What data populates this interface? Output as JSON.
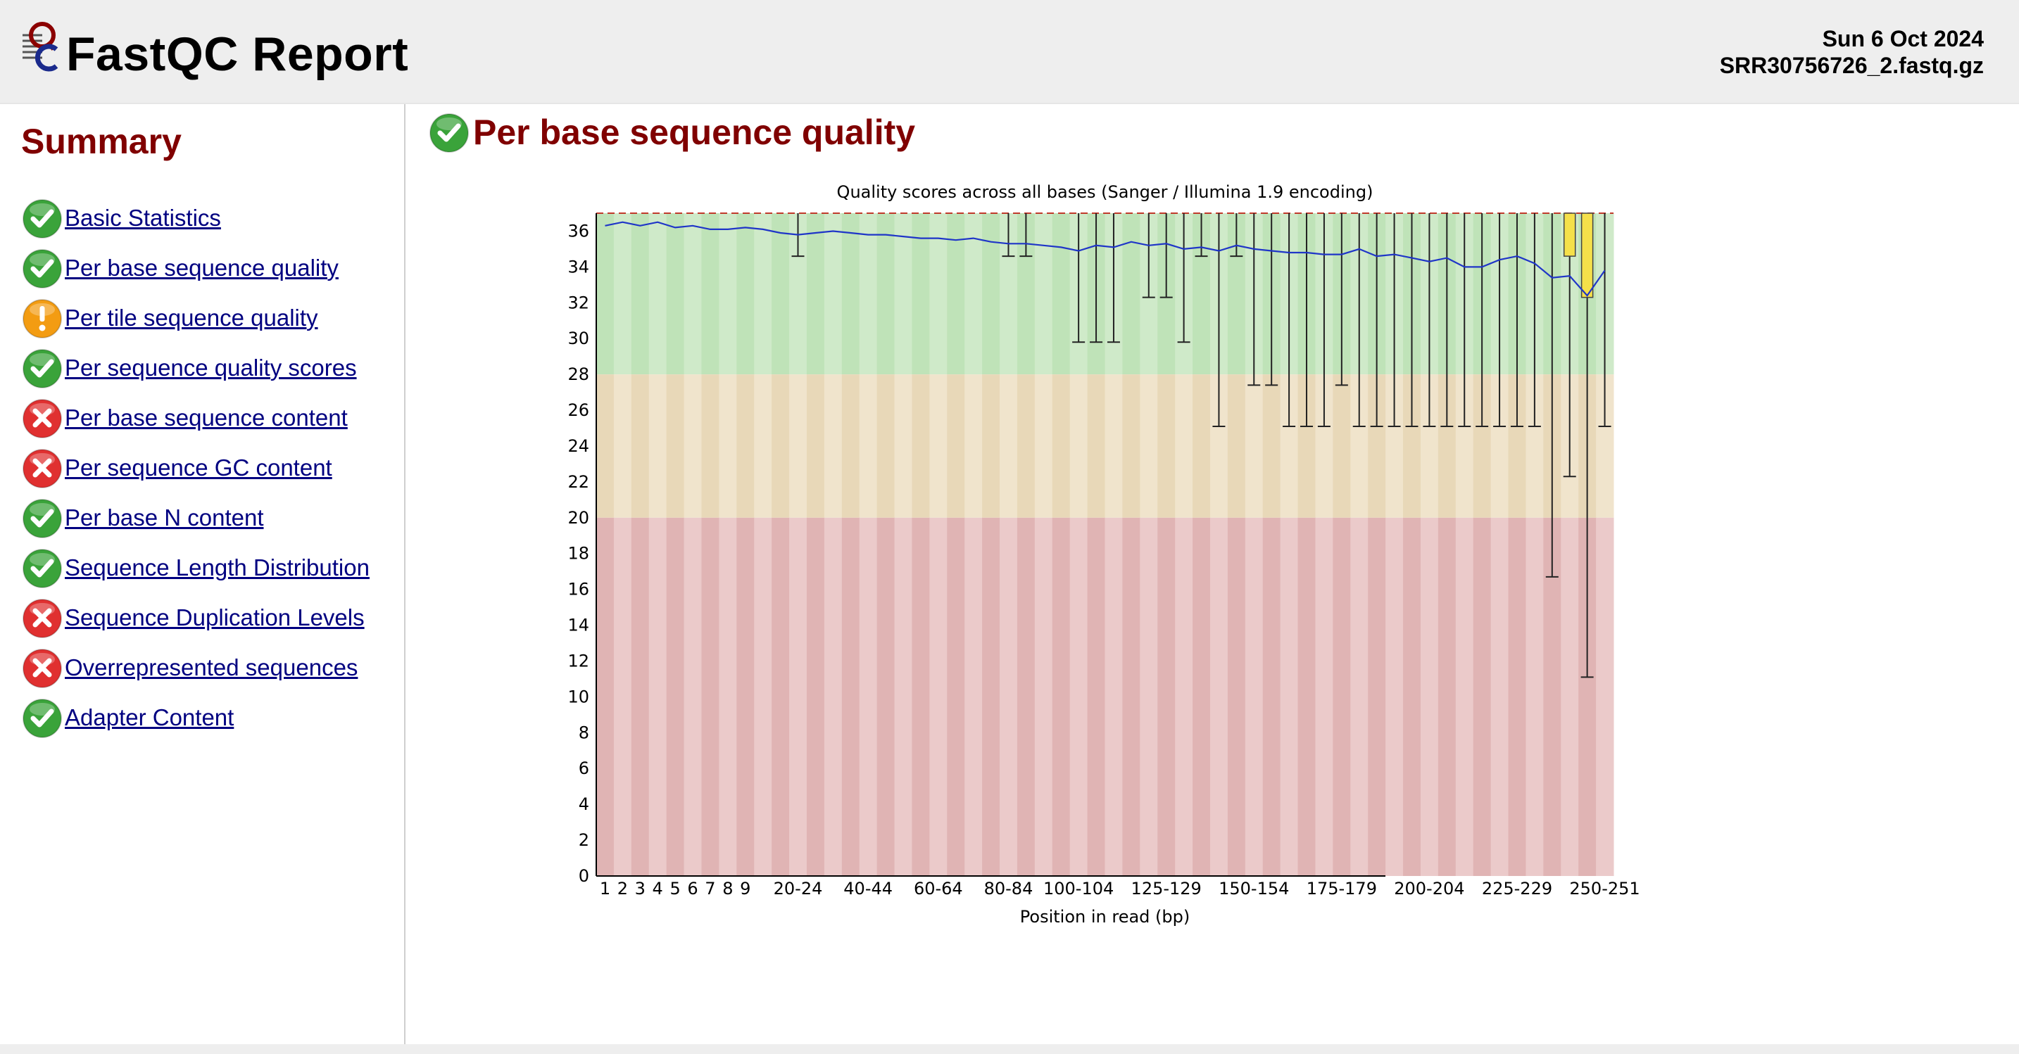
{
  "header": {
    "title": "FastQC Report",
    "date": "Sun 6 Oct 2024",
    "filename": "SRR30756726_2.fastq.gz"
  },
  "colors": {
    "pass": "#3aa33a",
    "warn": "#f39c12",
    "fail": "#e03030",
    "heading": "#800000",
    "link": "#000080"
  },
  "summary": {
    "title": "Summary",
    "modules": [
      {
        "label": "Basic Statistics",
        "status": "pass"
      },
      {
        "label": "Per base sequence quality",
        "status": "pass"
      },
      {
        "label": "Per tile sequence quality",
        "status": "warn"
      },
      {
        "label": "Per sequence quality scores",
        "status": "pass"
      },
      {
        "label": "Per base sequence content",
        "status": "fail"
      },
      {
        "label": "Per sequence GC content",
        "status": "fail"
      },
      {
        "label": "Per base N content",
        "status": "pass"
      },
      {
        "label": "Sequence Length Distribution",
        "status": "pass"
      },
      {
        "label": "Sequence Duplication Levels",
        "status": "fail"
      },
      {
        "label": "Overrepresented sequences",
        "status": "fail"
      },
      {
        "label": "Adapter Content",
        "status": "pass"
      }
    ]
  },
  "section": {
    "title": "Per base sequence quality",
    "status": "pass"
  },
  "chart_data": {
    "type": "box",
    "title": "Quality scores across all bases (Sanger / Illumina 1.9 encoding)",
    "xlabel": "Position in read (bp)",
    "ylabel": "",
    "ylim": [
      0,
      37
    ],
    "yticks": [
      0,
      2,
      4,
      6,
      8,
      10,
      12,
      14,
      16,
      18,
      20,
      22,
      24,
      26,
      28,
      30,
      32,
      34,
      36
    ],
    "x_tick_labels": [
      "1",
      "2",
      "3",
      "4",
      "5",
      "6",
      "7",
      "8",
      "9",
      "20-24",
      "40-44",
      "60-64",
      "80-84",
      "100-104",
      "125-129",
      "150-154",
      "175-179",
      "200-204",
      "225-229",
      "250-251"
    ],
    "background_bands": [
      {
        "from": 28,
        "to": 37,
        "color": "green"
      },
      {
        "from": 20,
        "to": 28,
        "color": "orange"
      },
      {
        "from": 0,
        "to": 20,
        "color": "red"
      }
    ],
    "grid": false,
    "mean_line_color": "#1f35c8",
    "box_color": "#f5e04a",
    "bins": [
      {
        "label": "1",
        "mean": 36.3,
        "low": 37,
        "high": 37
      },
      {
        "label": "2",
        "mean": 36.5,
        "low": 37,
        "high": 37
      },
      {
        "label": "3",
        "mean": 36.3,
        "low": 37,
        "high": 37
      },
      {
        "label": "4",
        "mean": 36.5,
        "low": 37,
        "high": 37
      },
      {
        "label": "5",
        "mean": 36.2,
        "low": 37,
        "high": 37
      },
      {
        "label": "6",
        "mean": 36.3,
        "low": 37,
        "high": 37
      },
      {
        "label": "7",
        "mean": 36.1,
        "low": 37,
        "high": 37
      },
      {
        "label": "8",
        "mean": 36.1,
        "low": 37,
        "high": 37
      },
      {
        "label": "9",
        "mean": 36.2,
        "low": 37,
        "high": 37
      },
      {
        "label": "10-14",
        "mean": 36.1,
        "low": 37,
        "high": 37
      },
      {
        "label": "15-19",
        "mean": 35.9,
        "low": 37,
        "high": 37
      },
      {
        "label": "20-24",
        "mean": 35.8,
        "low": 34.6,
        "high": 37
      },
      {
        "label": "25-29",
        "mean": 35.9,
        "low": 37,
        "high": 37
      },
      {
        "label": "30-34",
        "mean": 36.0,
        "low": 37,
        "high": 37
      },
      {
        "label": "35-39",
        "mean": 35.9,
        "low": 37,
        "high": 37
      },
      {
        "label": "40-44",
        "mean": 35.8,
        "low": 37,
        "high": 37
      },
      {
        "label": "45-49",
        "mean": 35.8,
        "low": 37,
        "high": 37
      },
      {
        "label": "50-54",
        "mean": 35.7,
        "low": 37,
        "high": 37
      },
      {
        "label": "55-59",
        "mean": 35.6,
        "low": 37,
        "high": 37
      },
      {
        "label": "60-64",
        "mean": 35.6,
        "low": 37,
        "high": 37
      },
      {
        "label": "65-69",
        "mean": 35.5,
        "low": 37,
        "high": 37
      },
      {
        "label": "70-74",
        "mean": 35.6,
        "low": 37,
        "high": 37
      },
      {
        "label": "75-79",
        "mean": 35.4,
        "low": 37,
        "high": 37
      },
      {
        "label": "80-84",
        "mean": 35.3,
        "low": 34.6,
        "high": 37
      },
      {
        "label": "85-89",
        "mean": 35.3,
        "low": 34.6,
        "high": 37
      },
      {
        "label": "90-94",
        "mean": 35.2,
        "low": 37,
        "high": 37
      },
      {
        "label": "95-99",
        "mean": 35.1,
        "low": 37,
        "high": 37
      },
      {
        "label": "100-104",
        "mean": 34.9,
        "low": 29.8,
        "high": 37
      },
      {
        "label": "105-109",
        "mean": 35.2,
        "low": 29.8,
        "high": 37
      },
      {
        "label": "110-114",
        "mean": 35.1,
        "low": 29.8,
        "high": 37
      },
      {
        "label": "115-119",
        "mean": 35.4,
        "low": 37,
        "high": 37
      },
      {
        "label": "120-124",
        "mean": 35.2,
        "low": 32.3,
        "high": 37
      },
      {
        "label": "125-129",
        "mean": 35.3,
        "low": 32.3,
        "high": 37
      },
      {
        "label": "130-134",
        "mean": 35.0,
        "low": 29.8,
        "high": 37
      },
      {
        "label": "135-139",
        "mean": 35.1,
        "low": 34.6,
        "high": 37
      },
      {
        "label": "140-144",
        "mean": 34.9,
        "low": 25.1,
        "high": 37
      },
      {
        "label": "145-149",
        "mean": 35.2,
        "low": 34.6,
        "high": 37
      },
      {
        "label": "150-154",
        "mean": 35.0,
        "low": 27.4,
        "high": 37
      },
      {
        "label": "155-159",
        "mean": 34.9,
        "low": 27.4,
        "high": 37
      },
      {
        "label": "160-164",
        "mean": 34.8,
        "low": 25.1,
        "high": 37
      },
      {
        "label": "165-169",
        "mean": 34.8,
        "low": 25.1,
        "high": 37
      },
      {
        "label": "170-174",
        "mean": 34.7,
        "low": 25.1,
        "high": 37
      },
      {
        "label": "175-179",
        "mean": 34.7,
        "low": 27.4,
        "high": 37
      },
      {
        "label": "180-184",
        "mean": 35.0,
        "low": 25.1,
        "high": 37
      },
      {
        "label": "185-189",
        "mean": 34.6,
        "low": 25.1,
        "high": 37
      },
      {
        "label": "190-194",
        "mean": 34.7,
        "low": 25.1,
        "high": 37
      },
      {
        "label": "195-199",
        "mean": 34.5,
        "low": 25.1,
        "high": 37
      },
      {
        "label": "200-204",
        "mean": 34.3,
        "low": 25.1,
        "high": 37
      },
      {
        "label": "205-209",
        "mean": 34.5,
        "low": 25.1,
        "high": 37
      },
      {
        "label": "210-214",
        "mean": 34.0,
        "low": 25.1,
        "high": 37
      },
      {
        "label": "215-219",
        "mean": 34.0,
        "low": 25.1,
        "high": 37
      },
      {
        "label": "220-224",
        "mean": 34.4,
        "low": 25.1,
        "high": 37
      },
      {
        "label": "225-229",
        "mean": 34.6,
        "low": 25.1,
        "high": 37
      },
      {
        "label": "230-234",
        "mean": 34.2,
        "low": 25.1,
        "high": 37
      },
      {
        "label": "235-239",
        "mean": 33.4,
        "low": 16.7,
        "high": 37
      },
      {
        "label": "240-244",
        "mean": 33.5,
        "low": 22.3,
        "high": 37,
        "q1": 34.6,
        "q3": 37
      },
      {
        "label": "245-249",
        "mean": 32.4,
        "low": 11.1,
        "high": 37,
        "q1": 32.3,
        "q3": 37
      },
      {
        "label": "250-251",
        "mean": 33.8,
        "low": 25.1,
        "high": 37
      }
    ]
  }
}
